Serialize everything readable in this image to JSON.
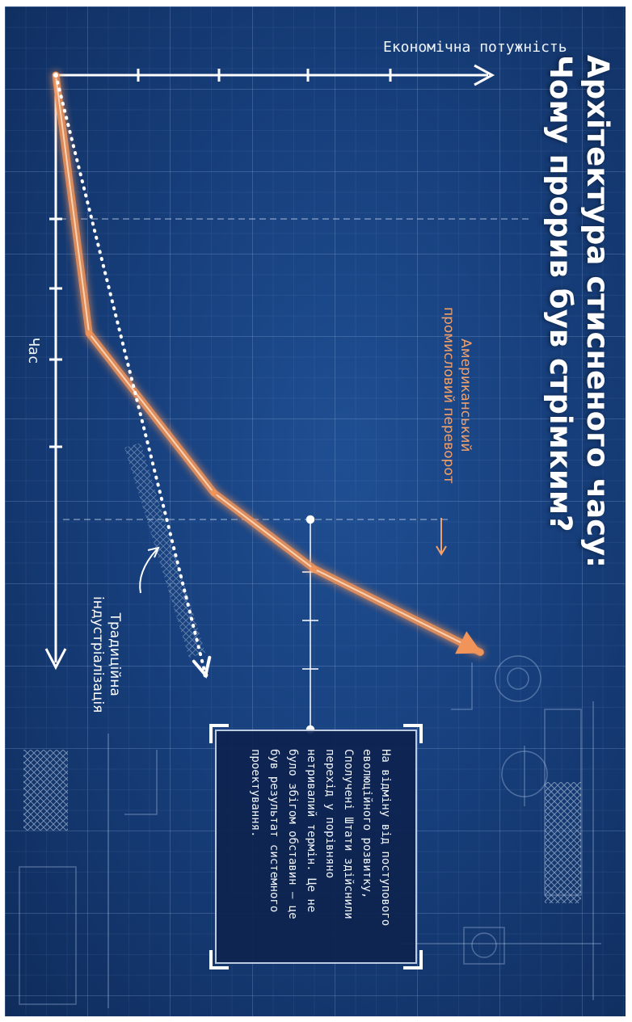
{
  "title": {
    "line1": "Архітектура стисненого часу:",
    "line2": "Чому прорив був стрімким?"
  },
  "axes": {
    "x_label": "Час",
    "y_label": "Економічна потужність"
  },
  "annotations": {
    "american": [
      "Американський",
      "промисловий переворот"
    ],
    "traditional": [
      "Традиційна",
      "індустріалізація"
    ]
  },
  "callout": {
    "text": "На відміну від поступового еволюційного розвитку, Сполучені Штати здійснили перехід у порівняно нетривалий термін. Це не було збігом обставин – це був результат системного проектування."
  },
  "colors": {
    "background": "#173f7c",
    "american_line": "#f0945a",
    "traditional_line": "#ffffff"
  },
  "chart_data": {
    "type": "line",
    "title": "Архітектура стисненого часу: Чому прорив був стрімким?",
    "xlabel": "Час",
    "ylabel": "Економічна потужність",
    "series": [
      {
        "name": "Американський промисловий переворот",
        "style": "solid-orange-arrow",
        "x": [
          0,
          3.4,
          5.5,
          6.5,
          7.6
        ],
        "y": [
          0,
          0.4,
          1.9,
          3.1,
          5.1
        ]
      },
      {
        "name": "Традиційна індустріалізація",
        "style": "dotted-white-arrow",
        "x": [
          0,
          7.9
        ],
        "y": [
          0,
          1.8
        ]
      }
    ]
  }
}
